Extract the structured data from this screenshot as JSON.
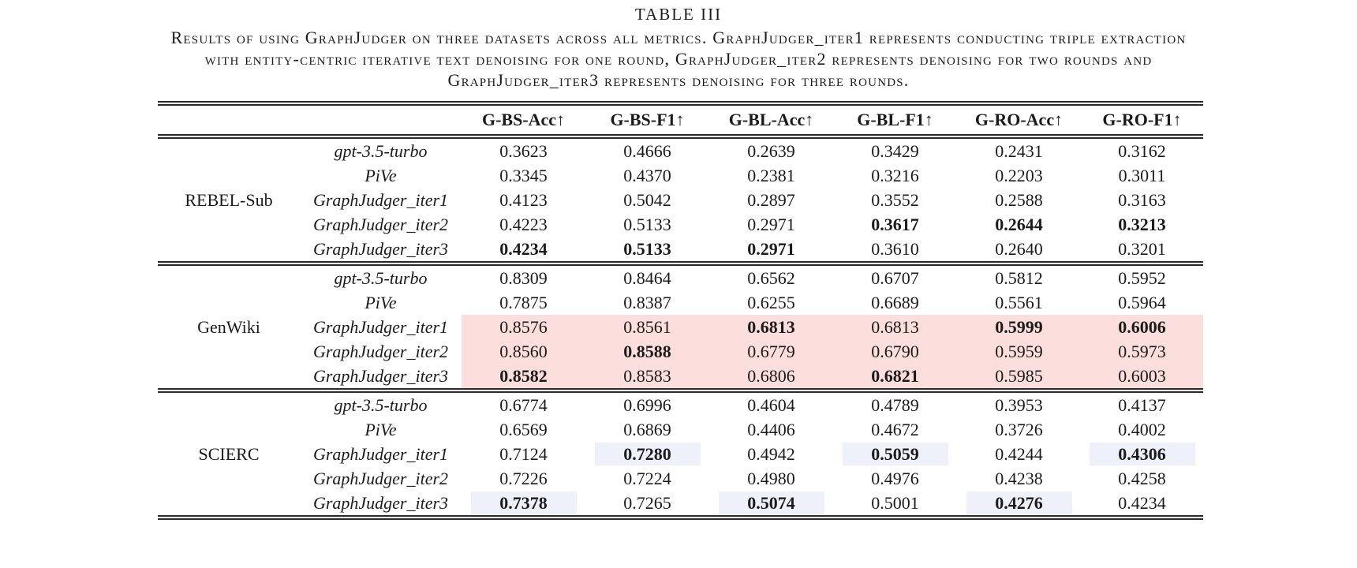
{
  "caption": {
    "label": "TABLE III",
    "lines": [
      "Results of using GraphJudger on three datasets across all metrics. GraphJudger_iter1 represents conducting triple extraction",
      "with entity-centric iterative text denoising for one round, GraphJudger_iter2 represents denoising for two rounds and",
      "GraphJudger_iter3 represents denoising for three rounds."
    ]
  },
  "table": {
    "columns": [
      "G-BS-Acc↑",
      "G-BS-F1↑",
      "G-BL-Acc↑",
      "G-BL-F1↑",
      "G-RO-Acc↑",
      "G-RO-F1↑"
    ],
    "groups": [
      {
        "dataset": "REBEL-Sub",
        "rows": [
          {
            "model": "gpt-3.5-turbo",
            "values": [
              "0.3623",
              "0.4666",
              "0.2639",
              "0.3429",
              "0.2431",
              "0.3162"
            ]
          },
          {
            "model": "PiVe",
            "values": [
              "0.3345",
              "0.4370",
              "0.2381",
              "0.3216",
              "0.2203",
              "0.3011"
            ]
          },
          {
            "model": "GraphJudger_iter1",
            "values": [
              "0.4123",
              "0.5042",
              "0.2897",
              "0.3552",
              "0.2588",
              "0.3163"
            ]
          },
          {
            "model": "GraphJudger_iter2",
            "values": [
              "0.4223",
              "0.5133",
              "0.2971",
              "0.3617",
              "0.2644",
              "0.3213"
            ],
            "bold": [
              0,
              0,
              0,
              1,
              1,
              1
            ]
          },
          {
            "model": "GraphJudger_iter3",
            "values": [
              "0.4234",
              "0.5133",
              "0.2971",
              "0.3610",
              "0.2640",
              "0.3201"
            ],
            "bold": [
              1,
              1,
              1,
              0,
              0,
              0
            ]
          }
        ]
      },
      {
        "dataset": "GenWiki",
        "rows": [
          {
            "model": "gpt-3.5-turbo",
            "values": [
              "0.8309",
              "0.8464",
              "0.6562",
              "0.6707",
              "0.5812",
              "0.5952"
            ]
          },
          {
            "model": "PiVe",
            "values": [
              "0.7875",
              "0.8387",
              "0.6255",
              "0.6689",
              "0.5561",
              "0.5964"
            ]
          },
          {
            "model": "GraphJudger_iter1",
            "values": [
              "0.8576",
              "0.8561",
              "0.6813",
              "0.6813",
              "0.5999",
              "0.6006"
            ],
            "bold": [
              0,
              0,
              1,
              0,
              1,
              1
            ],
            "hl": [
              "pink",
              "pink",
              "pink",
              "pink",
              "pink",
              "pink"
            ]
          },
          {
            "model": "GraphJudger_iter2",
            "values": [
              "0.8560",
              "0.8588",
              "0.6779",
              "0.6790",
              "0.5959",
              "0.5973"
            ],
            "bold": [
              0,
              1,
              0,
              0,
              0,
              0
            ],
            "hl": [
              "pink",
              "pink",
              "pink",
              "pink",
              "pink",
              "pink"
            ]
          },
          {
            "model": "GraphJudger_iter3",
            "values": [
              "0.8582",
              "0.8583",
              "0.6806",
              "0.6821",
              "0.5985",
              "0.6003"
            ],
            "bold": [
              1,
              0,
              0,
              1,
              0,
              0
            ],
            "hl": [
              "pink",
              "pink",
              "pink",
              "pink",
              "pink",
              "pink"
            ]
          }
        ]
      },
      {
        "dataset": "SCIERC",
        "rows": [
          {
            "model": "gpt-3.5-turbo",
            "values": [
              "0.6774",
              "0.6996",
              "0.4604",
              "0.4789",
              "0.3953",
              "0.4137"
            ]
          },
          {
            "model": "PiVe",
            "values": [
              "0.6569",
              "0.6869",
              "0.4406",
              "0.4672",
              "0.3726",
              "0.4002"
            ]
          },
          {
            "model": "GraphJudger_iter1",
            "values": [
              "0.7124",
              "0.7280",
              "0.4942",
              "0.5059",
              "0.4244",
              "0.4306"
            ],
            "bold": [
              0,
              1,
              0,
              1,
              0,
              1
            ],
            "hl": [
              "",
              "lav",
              "",
              "lav",
              "",
              "lav"
            ]
          },
          {
            "model": "GraphJudger_iter2",
            "values": [
              "0.7226",
              "0.7224",
              "0.4980",
              "0.4976",
              "0.4238",
              "0.4258"
            ]
          },
          {
            "model": "GraphJudger_iter3",
            "values": [
              "0.7378",
              "0.7265",
              "0.5074",
              "0.5001",
              "0.4276",
              "0.4234"
            ],
            "bold": [
              1,
              0,
              1,
              0,
              1,
              0
            ],
            "hl": [
              "lav",
              "",
              "lav",
              "",
              "lav",
              ""
            ]
          }
        ]
      }
    ]
  },
  "colors": {
    "highlight_pink": "#fcdedc",
    "highlight_lavender": "#eef0fa",
    "rule": "#2a2a2a",
    "text": "#1b1b1b"
  }
}
